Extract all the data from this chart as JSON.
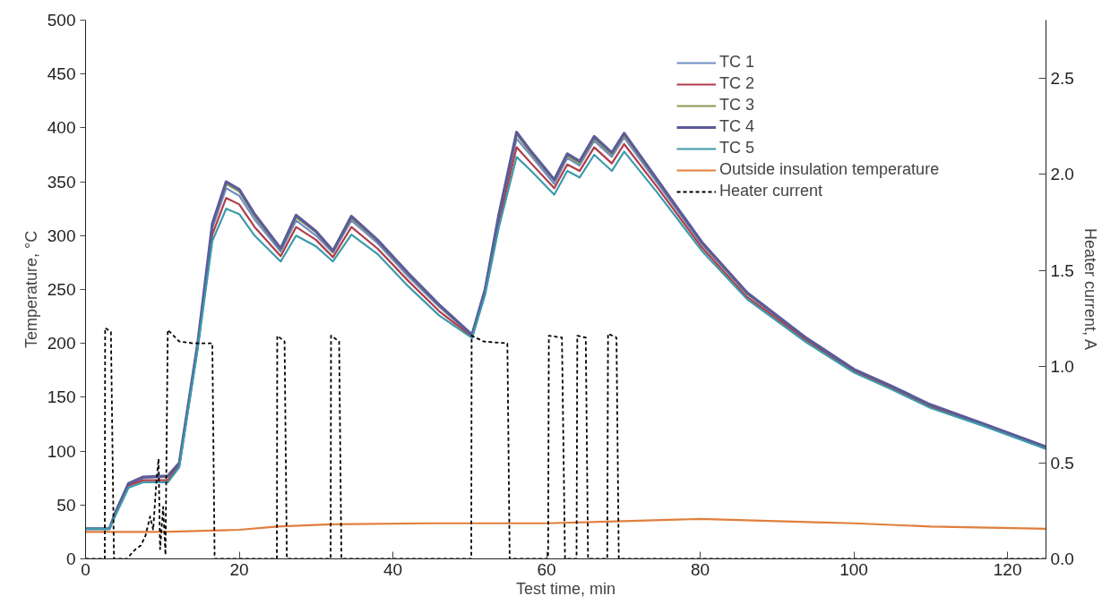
{
  "chart_data": {
    "type": "line",
    "xlabel": "Test time, min",
    "ylabel": "Temperature, °C",
    "y2label": "Heater current, A",
    "xlim": [
      0,
      125
    ],
    "xticks": [
      0,
      20,
      40,
      60,
      80,
      100,
      120
    ],
    "ylim": [
      0,
      500
    ],
    "yticks": [
      0,
      50,
      100,
      150,
      200,
      250,
      300,
      350,
      400,
      450,
      500
    ],
    "y2lim": [
      0,
      2.8
    ],
    "y2ticks": [
      {
        "value": 0,
        "label": "0.0"
      },
      0.5,
      {
        "value": 1,
        "label": "1.0"
      },
      1.5,
      {
        "value": 2,
        "label": "2.0"
      },
      2.5
    ],
    "grid": false,
    "legend": "top right",
    "x": [
      0,
      3.1,
      4.0,
      5.6,
      7.5,
      10.7,
      12.2,
      14.6,
      16.5,
      18.3,
      20,
      22,
      25.4,
      27.4,
      30,
      32.2,
      34.6,
      38,
      42,
      46,
      50.3,
      52,
      53.8,
      56.1,
      58,
      61.0,
      62.7,
      64.3,
      66.2,
      68.5,
      70.1,
      74.4,
      80.2,
      86.1,
      93.8,
      100,
      104.7,
      110,
      117,
      125
    ],
    "series": [
      {
        "name": "TC 1",
        "color": "#6f8fc2",
        "values": [
          28,
          28,
          44,
          69,
          75,
          76,
          88,
          199,
          307,
          344,
          337,
          315,
          285,
          314,
          300,
          284,
          314,
          293,
          262,
          234,
          207,
          249,
          317,
          390,
          374,
          348,
          372,
          365,
          388,
          373,
          391,
          349,
          292,
          246,
          204,
          175,
          160,
          142,
          125,
          104
        ]
      },
      {
        "name": "TC 2",
        "color": "#b03c48",
        "values": [
          null,
          null,
          43,
          68,
          73,
          73,
          87,
          197,
          301,
          335,
          329,
          308,
          281,
          308,
          296,
          280,
          308,
          288,
          258,
          230,
          206,
          247,
          313,
          382,
          367,
          344,
          366,
          360,
          382,
          367,
          385,
          345,
          289,
          243,
          203,
          174,
          159,
          141,
          124,
          103
        ]
      },
      {
        "name": "TC 3",
        "color": "#8a9a55",
        "values": [
          28,
          28,
          45,
          70,
          76,
          76,
          89,
          200,
          309,
          348,
          341,
          318,
          287,
          317,
          303,
          285,
          316,
          295,
          264,
          235,
          208,
          250,
          319,
          394,
          376,
          351,
          374,
          367,
          390,
          375,
          393,
          351,
          293,
          246,
          205,
          null,
          null,
          null,
          null,
          null
        ]
      },
      {
        "name": "TC 4",
        "color": "#5b5b98",
        "values": [
          28,
          28,
          45,
          70,
          76,
          77,
          89,
          200,
          311,
          350,
          343,
          320,
          288,
          319,
          304,
          286,
          318,
          296,
          265,
          236,
          208,
          250,
          320,
          396,
          378,
          352,
          376,
          369,
          392,
          377,
          395,
          352,
          294,
          247,
          205,
          176,
          161,
          143,
          125,
          104
        ]
      },
      {
        "name": "TC 5",
        "color": "#3c9aab",
        "values": [
          28,
          28,
          42,
          66,
          71,
          71,
          85,
          195,
          295,
          325,
          320,
          300,
          276,
          300,
          290,
          276,
          301,
          283,
          253,
          226,
          205,
          245,
          308,
          373,
          360,
          338,
          360,
          354,
          375,
          360,
          378,
          340,
          286,
          241,
          201,
          173,
          158,
          140,
          123,
          102
        ]
      },
      {
        "name": "Outside insulation temperature",
        "color": "#e07f3c",
        "x": [
          0,
          10,
          20,
          25,
          32,
          45,
          60,
          70,
          80,
          90,
          95,
          100,
          110,
          125
        ],
        "values": [
          25,
          25,
          27,
          30,
          32,
          33,
          33,
          35,
          37,
          35,
          34,
          33,
          30,
          28
        ]
      },
      {
        "name": "Heater current",
        "color": "#000000",
        "axis": "y2",
        "line_style": "dashed",
        "x": [
          0,
          2.5,
          2.55,
          3.3,
          3.7,
          5.5,
          5.8,
          6.5,
          7.2,
          7.8,
          8.4,
          8.8,
          9.2,
          9.5,
          9.7,
          10.1,
          10.4,
          10.7,
          12.2,
          14.1,
          16.5,
          16.8,
          24.9,
          24.95,
          25.9,
          26.2,
          31.9,
          31.95,
          33.0,
          33.3,
          50.2,
          50.25,
          51.8,
          54.9,
          55.2,
          60.2,
          60.3,
          62.0,
          62.4,
          63.9,
          64.0,
          65.1,
          65.4,
          67.9,
          68.0,
          69.1,
          69.4,
          125
        ],
        "values": [
          0,
          0,
          1.2,
          1.18,
          0,
          0,
          0.02,
          0.05,
          0.07,
          0.12,
          0.22,
          0.15,
          0.39,
          0.52,
          0.05,
          0.27,
          0.02,
          1.19,
          1.13,
          1.12,
          1.12,
          0,
          0,
          1.16,
          1.13,
          0,
          0,
          1.16,
          1.13,
          0,
          0,
          1.16,
          1.13,
          1.12,
          0,
          0,
          1.16,
          1.15,
          0,
          0,
          1.16,
          1.15,
          0,
          0,
          1.17,
          1.15,
          0,
          0
        ]
      }
    ]
  }
}
